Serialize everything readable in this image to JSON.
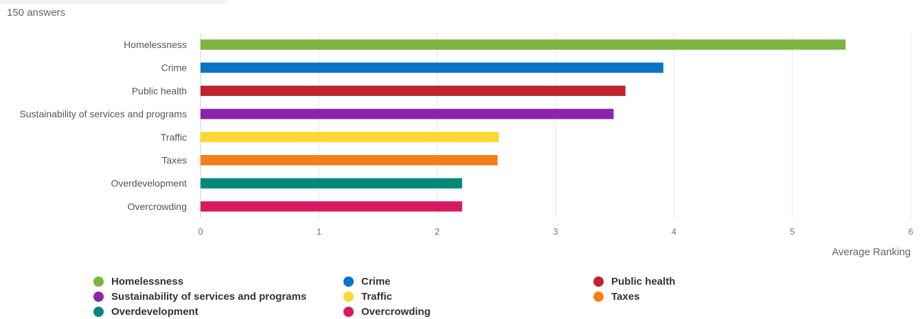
{
  "header": {
    "answers_count": "150 answers"
  },
  "chart_data": {
    "type": "bar",
    "orientation": "horizontal",
    "categories": [
      "Homelessness",
      "Crime",
      "Public health",
      "Sustainability of services and programs",
      "Traffic",
      "Taxes",
      "Overdevelopment",
      "Overcrowding"
    ],
    "values": [
      5.45,
      3.91,
      3.59,
      3.49,
      2.52,
      2.51,
      2.21,
      2.21
    ],
    "colors": [
      "#7cb342",
      "#0b73c4",
      "#c0222f",
      "#8e24aa",
      "#fdd835",
      "#f57f17",
      "#00897b",
      "#d81b60"
    ],
    "xlabel": "Average Ranking",
    "ylabel": "",
    "xlim": [
      0,
      6
    ],
    "xticks": [
      "0",
      "1",
      "2",
      "3",
      "4",
      "5",
      "6"
    ],
    "grid": true,
    "legend": {
      "placement": "bottom",
      "entries": [
        "Homelessness",
        "Crime",
        "Public health",
        "Sustainability of services and programs",
        "Traffic",
        "Taxes",
        "Overdevelopment",
        "Overcrowding"
      ]
    }
  }
}
